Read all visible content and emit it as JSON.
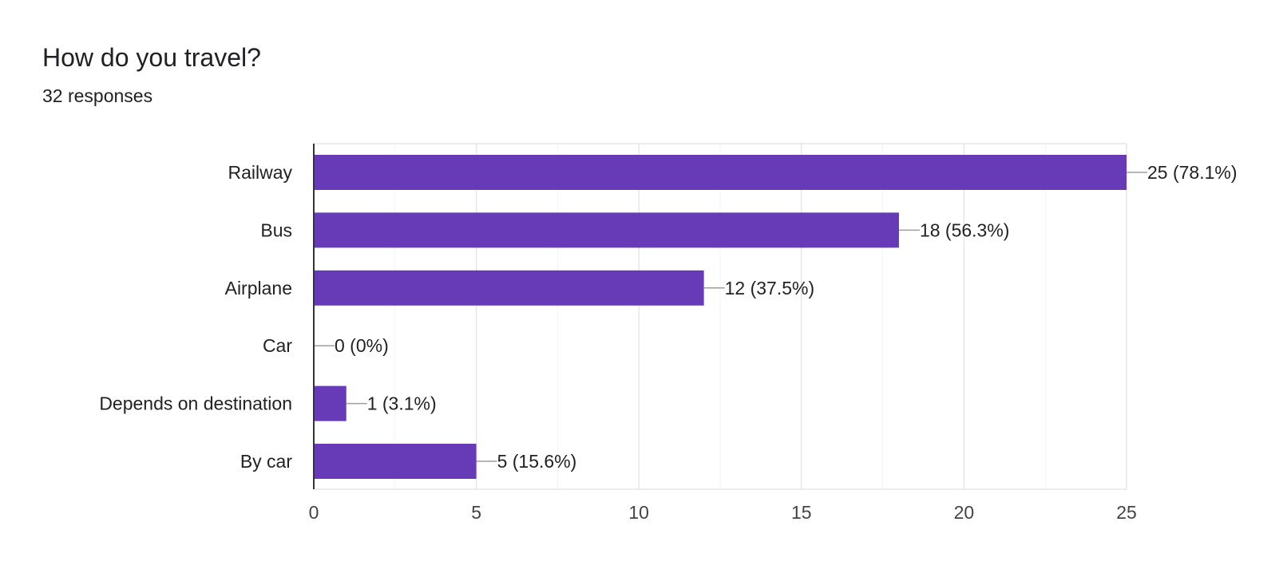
{
  "chart_data": {
    "type": "bar",
    "orientation": "horizontal",
    "title": "How do you travel?",
    "subtitle": "32 responses",
    "categories": [
      "Railway",
      "Bus",
      "Airplane",
      "Car",
      "Depends on destination",
      "By car"
    ],
    "values": [
      25,
      18,
      12,
      0,
      1,
      5
    ],
    "value_labels": [
      "25 (78.1%)",
      "18 (56.3%)",
      "12 (37.5%)",
      "0 (0%)",
      "1 (3.1%)",
      "5 (15.6%)"
    ],
    "xlim": [
      0,
      25
    ],
    "xticks": [
      0,
      5,
      10,
      15,
      20,
      25
    ],
    "xlabel": "",
    "ylabel": "",
    "grid": true,
    "bar_color": "#673ab7"
  }
}
